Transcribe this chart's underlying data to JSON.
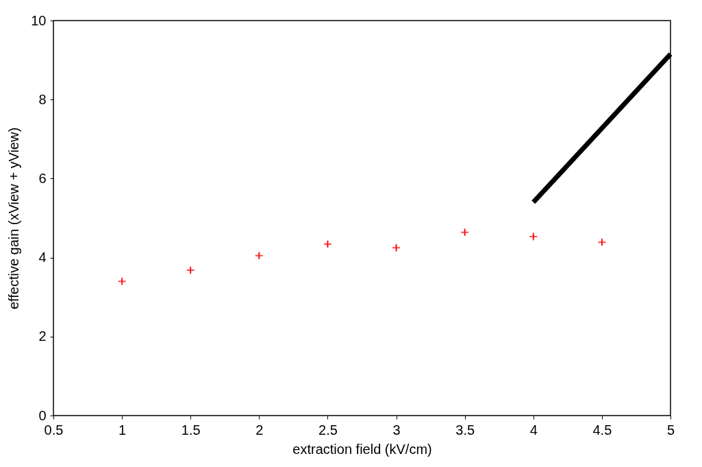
{
  "chart_data": {
    "type": "scatter",
    "xlabel": "extraction field (kV/cm)",
    "ylabel": "effective gain (xView + yView)",
    "xlim": [
      0.5,
      5
    ],
    "xticks": [
      0.5,
      1,
      1.5,
      2,
      2.5,
      3,
      3.5,
      4,
      4.5,
      5
    ],
    "ylim": [
      0,
      10
    ],
    "yticks": [
      0,
      2,
      4,
      6,
      8,
      10
    ],
    "grid": false,
    "series": [
      {
        "marker": "cross",
        "color": "#ff0000",
        "x": [
          1,
          1.5,
          2,
          2.5,
          3,
          3.5,
          4,
          4.5
        ],
        "values": [
          3.4,
          3.68,
          4.05,
          4.34,
          4.25,
          4.64,
          4.53,
          4.39
        ],
        "errors": [
          0.07,
          0.07,
          0.07,
          0.07,
          0.07,
          0.07,
          0.07,
          0.07
        ]
      },
      {
        "type": "line",
        "color": "#000000",
        "x": [
          4,
          5
        ],
        "values": [
          5.4,
          9.15
        ]
      }
    ]
  }
}
